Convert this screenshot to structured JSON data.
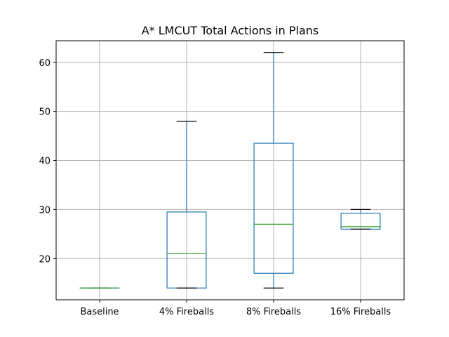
{
  "chart_data": {
    "type": "box",
    "title": "A* LMCUT Total Actions in Plans",
    "xlabel": "",
    "ylabel": "",
    "categories": [
      "Baseline",
      "4% Fireballs",
      "8% Fireballs",
      "16% Fireballs"
    ],
    "boxes": [
      {
        "min": 14,
        "q1": 14,
        "median": 14,
        "q3": 14,
        "max": 14
      },
      {
        "min": 14,
        "q1": 14,
        "median": 21,
        "q3": 29.5,
        "max": 48
      },
      {
        "min": 14,
        "q1": 17,
        "median": 27,
        "q3": 43.5,
        "max": 62
      },
      {
        "min": 26,
        "q1": 26,
        "median": 26.5,
        "q3": 29.25,
        "max": 30
      }
    ],
    "ylim": [
      11.6,
      64.4
    ],
    "yticks": [
      20,
      30,
      40,
      50,
      60
    ],
    "grid": true,
    "colors": {
      "box": "#1f77b4",
      "median": "#2ca02c",
      "cap": "#000000",
      "grid": "#b0b0b0"
    }
  }
}
